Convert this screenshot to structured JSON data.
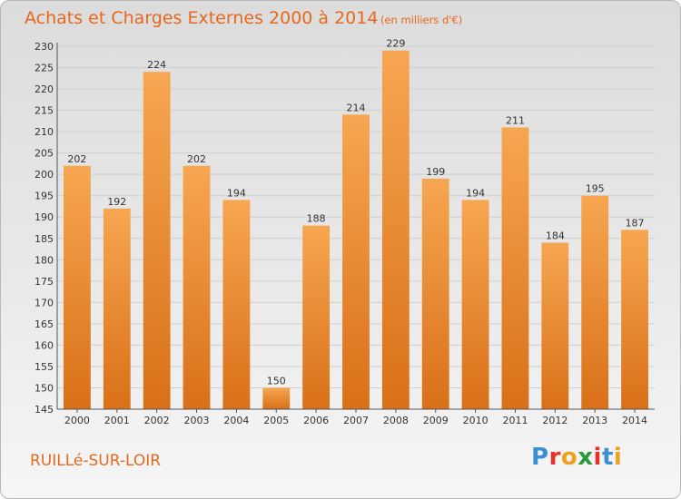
{
  "header": {
    "title": "Achats et Charges Externes 2000 à 2014",
    "subtitle": "(en milliers d'€)"
  },
  "footer": {
    "commune": "RUILLé-SUR-LOIR",
    "logo_text": "Proxiti",
    "logo_colors": [
      "#3b8fd4",
      "#e2322a",
      "#f0a01c",
      "#2b9a3f",
      "#e2322a",
      "#3b8fd4",
      "#f0a01c"
    ]
  },
  "colors": {
    "bar_top": "#f7a651",
    "bar_bottom": "#d97018",
    "text_accent": "#e8671e"
  },
  "chart_data": {
    "type": "bar",
    "categories": [
      "2000",
      "2001",
      "2002",
      "2003",
      "2004",
      "2005",
      "2006",
      "2007",
      "2008",
      "2009",
      "2010",
      "2011",
      "2012",
      "2013",
      "2014"
    ],
    "values": [
      202,
      192,
      224,
      202,
      194,
      150,
      188,
      214,
      229,
      199,
      194,
      211,
      184,
      195,
      187
    ],
    "title": "Achats et Charges Externes 2000 à 2014",
    "xlabel": "",
    "ylabel": "",
    "ylim": [
      145,
      230
    ],
    "yticks": [
      145,
      150,
      155,
      160,
      165,
      170,
      175,
      180,
      185,
      190,
      195,
      200,
      205,
      210,
      215,
      220,
      225,
      230
    ],
    "grid": true,
    "data_labels": true
  }
}
